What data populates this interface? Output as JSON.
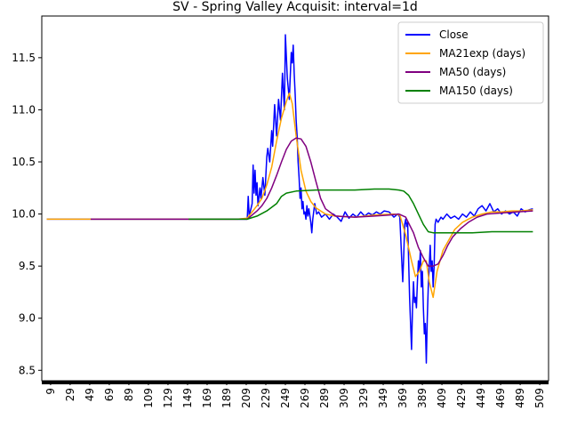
{
  "chart_data": {
    "type": "line",
    "title": "SV - Spring Valley Acquisit: interval=1d",
    "xlabel": "",
    "ylabel": "",
    "xlim": [
      0,
      518
    ],
    "ylim": [
      8.4,
      11.9
    ],
    "x_ticks": [
      9,
      29,
      49,
      69,
      89,
      109,
      129,
      149,
      169,
      189,
      209,
      229,
      249,
      269,
      289,
      309,
      329,
      349,
      369,
      389,
      409,
      429,
      449,
      469,
      489,
      509
    ],
    "y_ticks": [
      8.5,
      9.0,
      9.5,
      10.0,
      10.5,
      11.0,
      11.5
    ],
    "legend_position": "top-right",
    "series": [
      {
        "name": "Close",
        "color": "#0000ff",
        "points": [
          [
            5,
            9.95
          ],
          [
            50,
            9.95
          ],
          [
            100,
            9.95
          ],
          [
            150,
            9.95
          ],
          [
            200,
            9.95
          ],
          [
            210,
            9.95
          ],
          [
            211,
            10.17
          ],
          [
            212,
            9.98
          ],
          [
            213,
            10.02
          ],
          [
            215,
            10.1
          ],
          [
            216,
            10.47
          ],
          [
            217,
            10.2
          ],
          [
            218,
            10.42
          ],
          [
            219,
            10.18
          ],
          [
            220,
            10.3
          ],
          [
            221,
            10.08
          ],
          [
            223,
            10.25
          ],
          [
            224,
            10.15
          ],
          [
            226,
            10.35
          ],
          [
            228,
            10.18
          ],
          [
            230,
            10.55
          ],
          [
            231,
            10.63
          ],
          [
            233,
            10.5
          ],
          [
            235,
            10.8
          ],
          [
            236,
            10.65
          ],
          [
            238,
            11.05
          ],
          [
            240,
            10.75
          ],
          [
            242,
            11.1
          ],
          [
            244,
            10.9
          ],
          [
            246,
            11.35
          ],
          [
            248,
            11.0
          ],
          [
            249,
            11.72
          ],
          [
            251,
            11.3
          ],
          [
            253,
            11.1
          ],
          [
            255,
            11.55
          ],
          [
            256,
            11.45
          ],
          [
            257,
            11.62
          ],
          [
            258,
            11.35
          ],
          [
            259,
            11.15
          ],
          [
            260,
            10.9
          ],
          [
            261,
            10.75
          ],
          [
            262,
            10.5
          ],
          [
            263,
            10.35
          ],
          [
            264,
            10.15
          ],
          [
            265,
            10.25
          ],
          [
            266,
            10.05
          ],
          [
            267,
            10.12
          ],
          [
            268,
            10.0
          ],
          [
            269,
            10.02
          ],
          [
            270,
            9.95
          ],
          [
            271,
            10.08
          ],
          [
            272,
            9.98
          ],
          [
            273,
            10.05
          ],
          [
            275,
            9.92
          ],
          [
            276,
            9.82
          ],
          [
            277,
            9.95
          ],
          [
            279,
            10.1
          ],
          [
            281,
            10.0
          ],
          [
            283,
            10.02
          ],
          [
            286,
            9.97
          ],
          [
            290,
            10.0
          ],
          [
            294,
            9.95
          ],
          [
            298,
            10.0
          ],
          [
            302,
            9.97
          ],
          [
            306,
            9.93
          ],
          [
            310,
            10.02
          ],
          [
            314,
            9.96
          ],
          [
            318,
            10.0
          ],
          [
            322,
            9.97
          ],
          [
            326,
            10.02
          ],
          [
            330,
            9.98
          ],
          [
            334,
            10.01
          ],
          [
            338,
            9.99
          ],
          [
            342,
            10.02
          ],
          [
            346,
            10.0
          ],
          [
            350,
            10.03
          ],
          [
            355,
            10.02
          ],
          [
            360,
            9.97
          ],
          [
            364,
            10.0
          ],
          [
            366,
            9.97
          ],
          [
            368,
            9.55
          ],
          [
            369,
            9.35
          ],
          [
            370,
            9.6
          ],
          [
            371,
            9.9
          ],
          [
            372,
            9.95
          ],
          [
            373,
            9.88
          ],
          [
            374,
            9.92
          ],
          [
            376,
            9.2
          ],
          [
            377,
            8.95
          ],
          [
            378,
            8.7
          ],
          [
            379,
            9.1
          ],
          [
            380,
            9.35
          ],
          [
            381,
            9.15
          ],
          [
            382,
            9.2
          ],
          [
            383,
            9.1
          ],
          [
            384,
            9.35
          ],
          [
            385,
            9.55
          ],
          [
            386,
            9.45
          ],
          [
            387,
            9.65
          ],
          [
            388,
            9.3
          ],
          [
            389,
            9.45
          ],
          [
            390,
            9.1
          ],
          [
            391,
            8.85
          ],
          [
            392,
            8.95
          ],
          [
            393,
            8.57
          ],
          [
            394,
            9.0
          ],
          [
            395,
            9.3
          ],
          [
            396,
            9.5
          ],
          [
            397,
            9.7
          ],
          [
            398,
            9.45
          ],
          [
            399,
            9.55
          ],
          [
            400,
            9.3
          ],
          [
            401,
            9.5
          ],
          [
            402,
            9.9
          ],
          [
            403,
            9.95
          ],
          [
            405,
            9.92
          ],
          [
            408,
            9.97
          ],
          [
            410,
            9.95
          ],
          [
            414,
            10.0
          ],
          [
            418,
            9.96
          ],
          [
            422,
            9.98
          ],
          [
            426,
            9.95
          ],
          [
            430,
            10.0
          ],
          [
            434,
            9.97
          ],
          [
            438,
            10.02
          ],
          [
            442,
            9.98
          ],
          [
            446,
            10.05
          ],
          [
            450,
            10.08
          ],
          [
            454,
            10.03
          ],
          [
            458,
            10.1
          ],
          [
            462,
            10.02
          ],
          [
            466,
            10.05
          ],
          [
            470,
            10.0
          ],
          [
            474,
            10.03
          ],
          [
            478,
            10.0
          ],
          [
            482,
            10.02
          ],
          [
            486,
            9.98
          ],
          [
            490,
            10.05
          ],
          [
            494,
            10.02
          ],
          [
            498,
            10.04
          ],
          [
            502,
            10.05
          ]
        ]
      },
      {
        "name": "MA21exp (days)",
        "color": "#ffa500",
        "points": [
          [
            5,
            9.95
          ],
          [
            50,
            9.95
          ],
          [
            100,
            9.95
          ],
          [
            150,
            9.95
          ],
          [
            200,
            9.95
          ],
          [
            210,
            9.96
          ],
          [
            215,
            10.02
          ],
          [
            220,
            10.08
          ],
          [
            225,
            10.15
          ],
          [
            230,
            10.28
          ],
          [
            235,
            10.45
          ],
          [
            240,
            10.7
          ],
          [
            245,
            10.92
          ],
          [
            250,
            11.08
          ],
          [
            253,
            11.16
          ],
          [
            256,
            11.06
          ],
          [
            260,
            10.75
          ],
          [
            265,
            10.42
          ],
          [
            270,
            10.22
          ],
          [
            275,
            10.12
          ],
          [
            280,
            10.06
          ],
          [
            290,
            10.0
          ],
          [
            300,
            9.98
          ],
          [
            320,
            9.97
          ],
          [
            340,
            9.99
          ],
          [
            360,
            10.0
          ],
          [
            366,
            9.99
          ],
          [
            372,
            9.8
          ],
          [
            378,
            9.55
          ],
          [
            382,
            9.4
          ],
          [
            386,
            9.45
          ],
          [
            390,
            9.55
          ],
          [
            393,
            9.55
          ],
          [
            396,
            9.35
          ],
          [
            400,
            9.2
          ],
          [
            404,
            9.45
          ],
          [
            410,
            9.65
          ],
          [
            416,
            9.75
          ],
          [
            422,
            9.85
          ],
          [
            430,
            9.92
          ],
          [
            440,
            9.97
          ],
          [
            450,
            10.0
          ],
          [
            460,
            10.02
          ],
          [
            470,
            10.02
          ],
          [
            480,
            10.03
          ],
          [
            490,
            10.03
          ],
          [
            502,
            10.04
          ]
        ]
      },
      {
        "name": "MA50 (days)",
        "color": "#800080",
        "points": [
          [
            50,
            9.95
          ],
          [
            100,
            9.95
          ],
          [
            150,
            9.95
          ],
          [
            200,
            9.95
          ],
          [
            210,
            9.95
          ],
          [
            215,
            9.99
          ],
          [
            220,
            10.03
          ],
          [
            225,
            10.08
          ],
          [
            230,
            10.15
          ],
          [
            235,
            10.25
          ],
          [
            240,
            10.37
          ],
          [
            245,
            10.5
          ],
          [
            250,
            10.62
          ],
          [
            255,
            10.7
          ],
          [
            260,
            10.73
          ],
          [
            265,
            10.72
          ],
          [
            270,
            10.65
          ],
          [
            275,
            10.5
          ],
          [
            280,
            10.32
          ],
          [
            285,
            10.15
          ],
          [
            290,
            10.05
          ],
          [
            300,
            9.98
          ],
          [
            320,
            9.97
          ],
          [
            340,
            9.98
          ],
          [
            355,
            9.99
          ],
          [
            365,
            10.0
          ],
          [
            372,
            9.97
          ],
          [
            380,
            9.82
          ],
          [
            385,
            9.68
          ],
          [
            390,
            9.58
          ],
          [
            395,
            9.5
          ],
          [
            400,
            9.5
          ],
          [
            405,
            9.52
          ],
          [
            410,
            9.6
          ],
          [
            415,
            9.7
          ],
          [
            420,
            9.78
          ],
          [
            428,
            9.86
          ],
          [
            436,
            9.92
          ],
          [
            445,
            9.97
          ],
          [
            455,
            10.0
          ],
          [
            470,
            10.01
          ],
          [
            485,
            10.02
          ],
          [
            502,
            10.03
          ]
        ]
      },
      {
        "name": "MA150 (days)",
        "color": "#008000",
        "points": [
          [
            150,
            9.95
          ],
          [
            200,
            9.95
          ],
          [
            210,
            9.95
          ],
          [
            220,
            9.98
          ],
          [
            230,
            10.03
          ],
          [
            240,
            10.1
          ],
          [
            245,
            10.17
          ],
          [
            250,
            10.2
          ],
          [
            260,
            10.22
          ],
          [
            280,
            10.23
          ],
          [
            300,
            10.23
          ],
          [
            320,
            10.23
          ],
          [
            340,
            10.24
          ],
          [
            355,
            10.24
          ],
          [
            365,
            10.23
          ],
          [
            370,
            10.22
          ],
          [
            375,
            10.18
          ],
          [
            380,
            10.1
          ],
          [
            385,
            10.0
          ],
          [
            390,
            9.9
          ],
          [
            395,
            9.83
          ],
          [
            400,
            9.82
          ],
          [
            420,
            9.82
          ],
          [
            440,
            9.82
          ],
          [
            460,
            9.83
          ],
          [
            480,
            9.83
          ],
          [
            502,
            9.83
          ]
        ]
      }
    ]
  }
}
